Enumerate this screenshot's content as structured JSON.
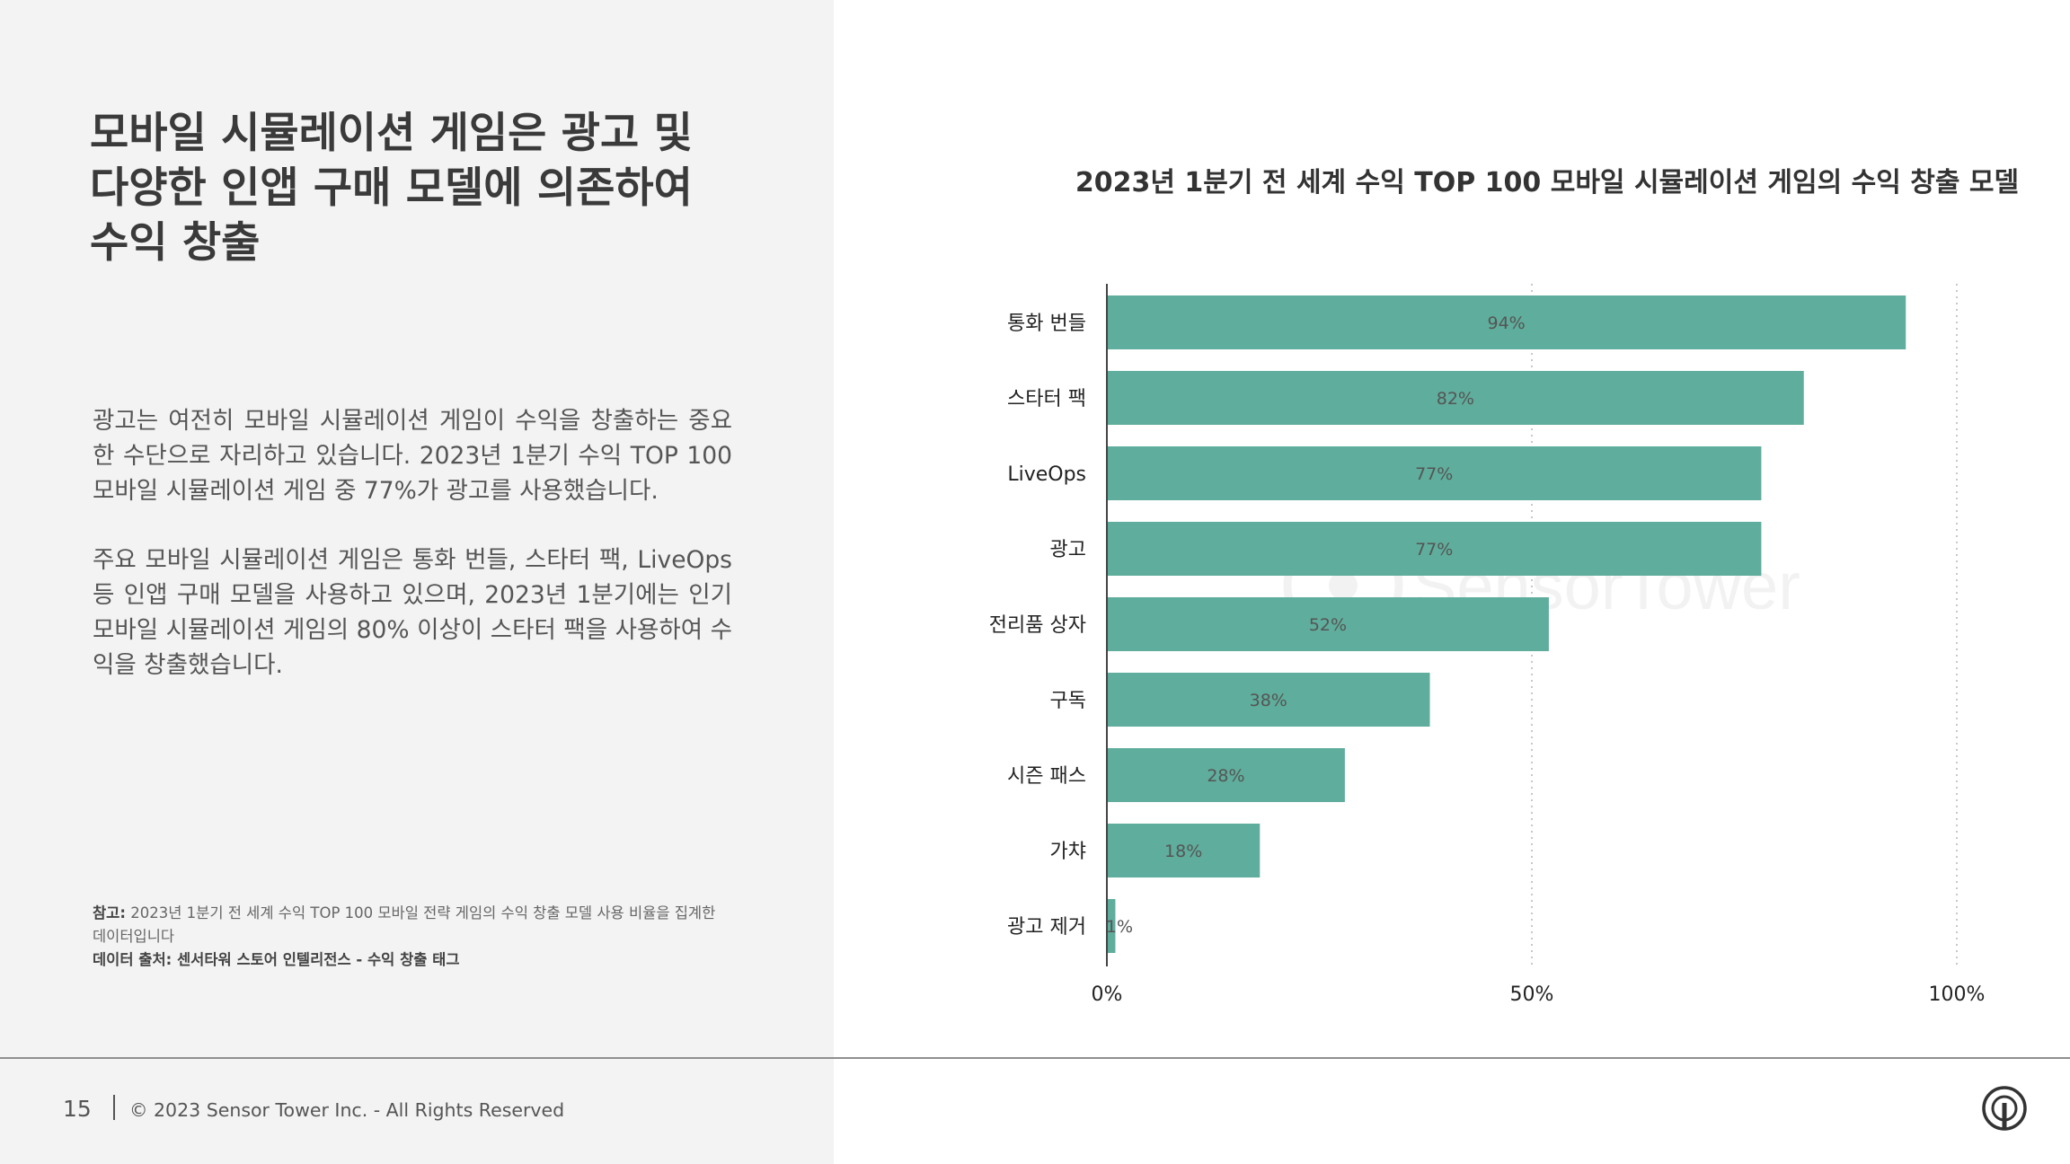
{
  "left": {
    "headline": "모바일 시뮬레이션 게임은 광고 및 다양한 인앱 구매 모델에 의존하여 수익 창출",
    "paragraph_1": "광고는 여전히 모바일 시뮬레이션 게임이 수익을 창출하는 중요한 수단으로 자리하고 있습니다. 2023년 1분기 수익 TOP 100 모바일 시뮬레이션 게임 중 77%가 광고를 사용했습니다.",
    "paragraph_2": "주요 모바일 시뮬레이션 게임은 통화 번들, 스타터 팩, LiveOps 등 인앱 구매 모델을 사용하고 있으며, 2023년 1분기에는 인기 모바일 시뮬레이션 게임의 80% 이상이 스타터 팩을 사용하여 수익을 창출했습니다.",
    "note_label": "참고:",
    "note_text": "2023년 1분기 전 세계 수익 TOP 100 모바일 전략 게임의 수익 창출 모델 사용 비율을 집계한 데이터입니다",
    "source_text": "데이터 출처: 센서타워 스토어 인텔리전스 - 수익 창출 태그"
  },
  "footer": {
    "page_number": "15",
    "copyright": "© 2023 Sensor Tower Inc. - All Rights Reserved",
    "logo_icon": "sensor-tower-logo-icon"
  },
  "watermark": "SensorTower",
  "colors": {
    "bar": "#5fad9c",
    "left_panel": "#f3f3f3"
  },
  "chart_data": {
    "type": "bar",
    "orientation": "horizontal",
    "title": "2023년 1분기 전 세계 수익 TOP 100 모바일 시뮬레이션 게임의 수익 창출 모델",
    "categories": [
      "통화 번들",
      "스타터 팩",
      "LiveOps",
      "광고",
      "전리품 상자",
      "구독",
      "시즌 패스",
      "가챠",
      "광고 제거"
    ],
    "values": [
      94,
      82,
      77,
      77,
      52,
      38,
      28,
      18,
      1
    ],
    "data_labels": [
      "94%",
      "82%",
      "77%",
      "77%",
      "52%",
      "38%",
      "28%",
      "18%",
      "1%"
    ],
    "xlim": [
      0,
      100
    ],
    "x_ticks": [
      0,
      50,
      100
    ],
    "x_tick_labels": [
      "0%",
      "50%",
      "100%"
    ],
    "gridlines": "dotted vertical at 50% and 100%",
    "legend": "none"
  }
}
